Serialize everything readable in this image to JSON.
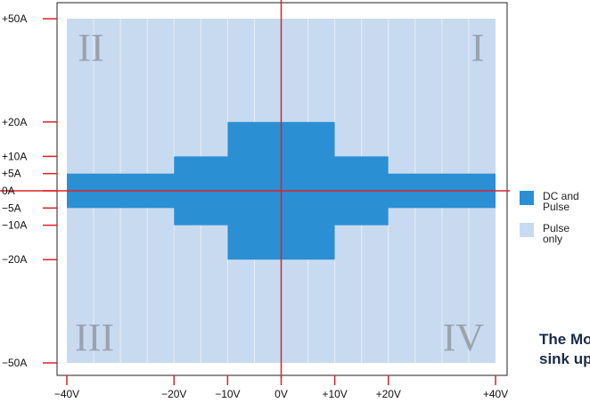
{
  "chart_data": {
    "type": "area",
    "xlim": [
      -40,
      40
    ],
    "ylim": [
      -50,
      50
    ],
    "x_ticks": [
      {
        "value": -40,
        "label": "−40V"
      },
      {
        "value": -20,
        "label": "−20V"
      },
      {
        "value": -10,
        "label": "−10V"
      },
      {
        "value": 0,
        "label": "0V"
      },
      {
        "value": 10,
        "label": "+10V"
      },
      {
        "value": 20,
        "label": "+20V"
      },
      {
        "value": 40,
        "label": "+40V"
      }
    ],
    "y_ticks": [
      {
        "value": 50,
        "label": "+50A"
      },
      {
        "value": 20,
        "label": "+20A"
      },
      {
        "value": 10,
        "label": "+10A"
      },
      {
        "value": 5,
        "label": "+5A"
      },
      {
        "value": 0,
        "label": "0A"
      },
      {
        "value": -5,
        "label": "−5A"
      },
      {
        "value": -10,
        "label": "−10A"
      },
      {
        "value": -20,
        "label": "−20A"
      },
      {
        "value": -50,
        "label": "−50A"
      }
    ],
    "grid": true,
    "series": [
      {
        "name": "Pulse only",
        "color": "#c8daf0",
        "regions": [
          {
            "x": [
              -40,
              40
            ],
            "y": [
              -50,
              50
            ]
          }
        ]
      },
      {
        "name": "DC and Pulse",
        "color": "#2b8fd4",
        "regions": [
          {
            "x": [
              -40,
              40
            ],
            "y": [
              -5,
              5
            ]
          },
          {
            "x": [
              -20,
              20
            ],
            "y": [
              -10,
              10
            ]
          },
          {
            "x": [
              -10,
              10
            ],
            "y": [
              -20,
              20
            ]
          }
        ]
      }
    ],
    "quadrants": [
      {
        "label": "I",
        "position": "top-right"
      },
      {
        "label": "II",
        "position": "top-left"
      },
      {
        "label": "III",
        "position": "bottom-left"
      },
      {
        "label": "IV",
        "position": "bottom-right"
      }
    ],
    "legend_position": "right",
    "colors": {
      "axis": "#d8232a",
      "frame": "#222222",
      "grid": "#e8eef7",
      "quadrant_label": "#9aa3ad"
    }
  },
  "legend": {
    "dc": {
      "line1": "DC and",
      "line2": "Pulse"
    },
    "pulse": {
      "line1": "Pulse",
      "line2": "only"
    }
  },
  "caption": {
    "line1": "The Mo",
    "line2": "sink up"
  }
}
